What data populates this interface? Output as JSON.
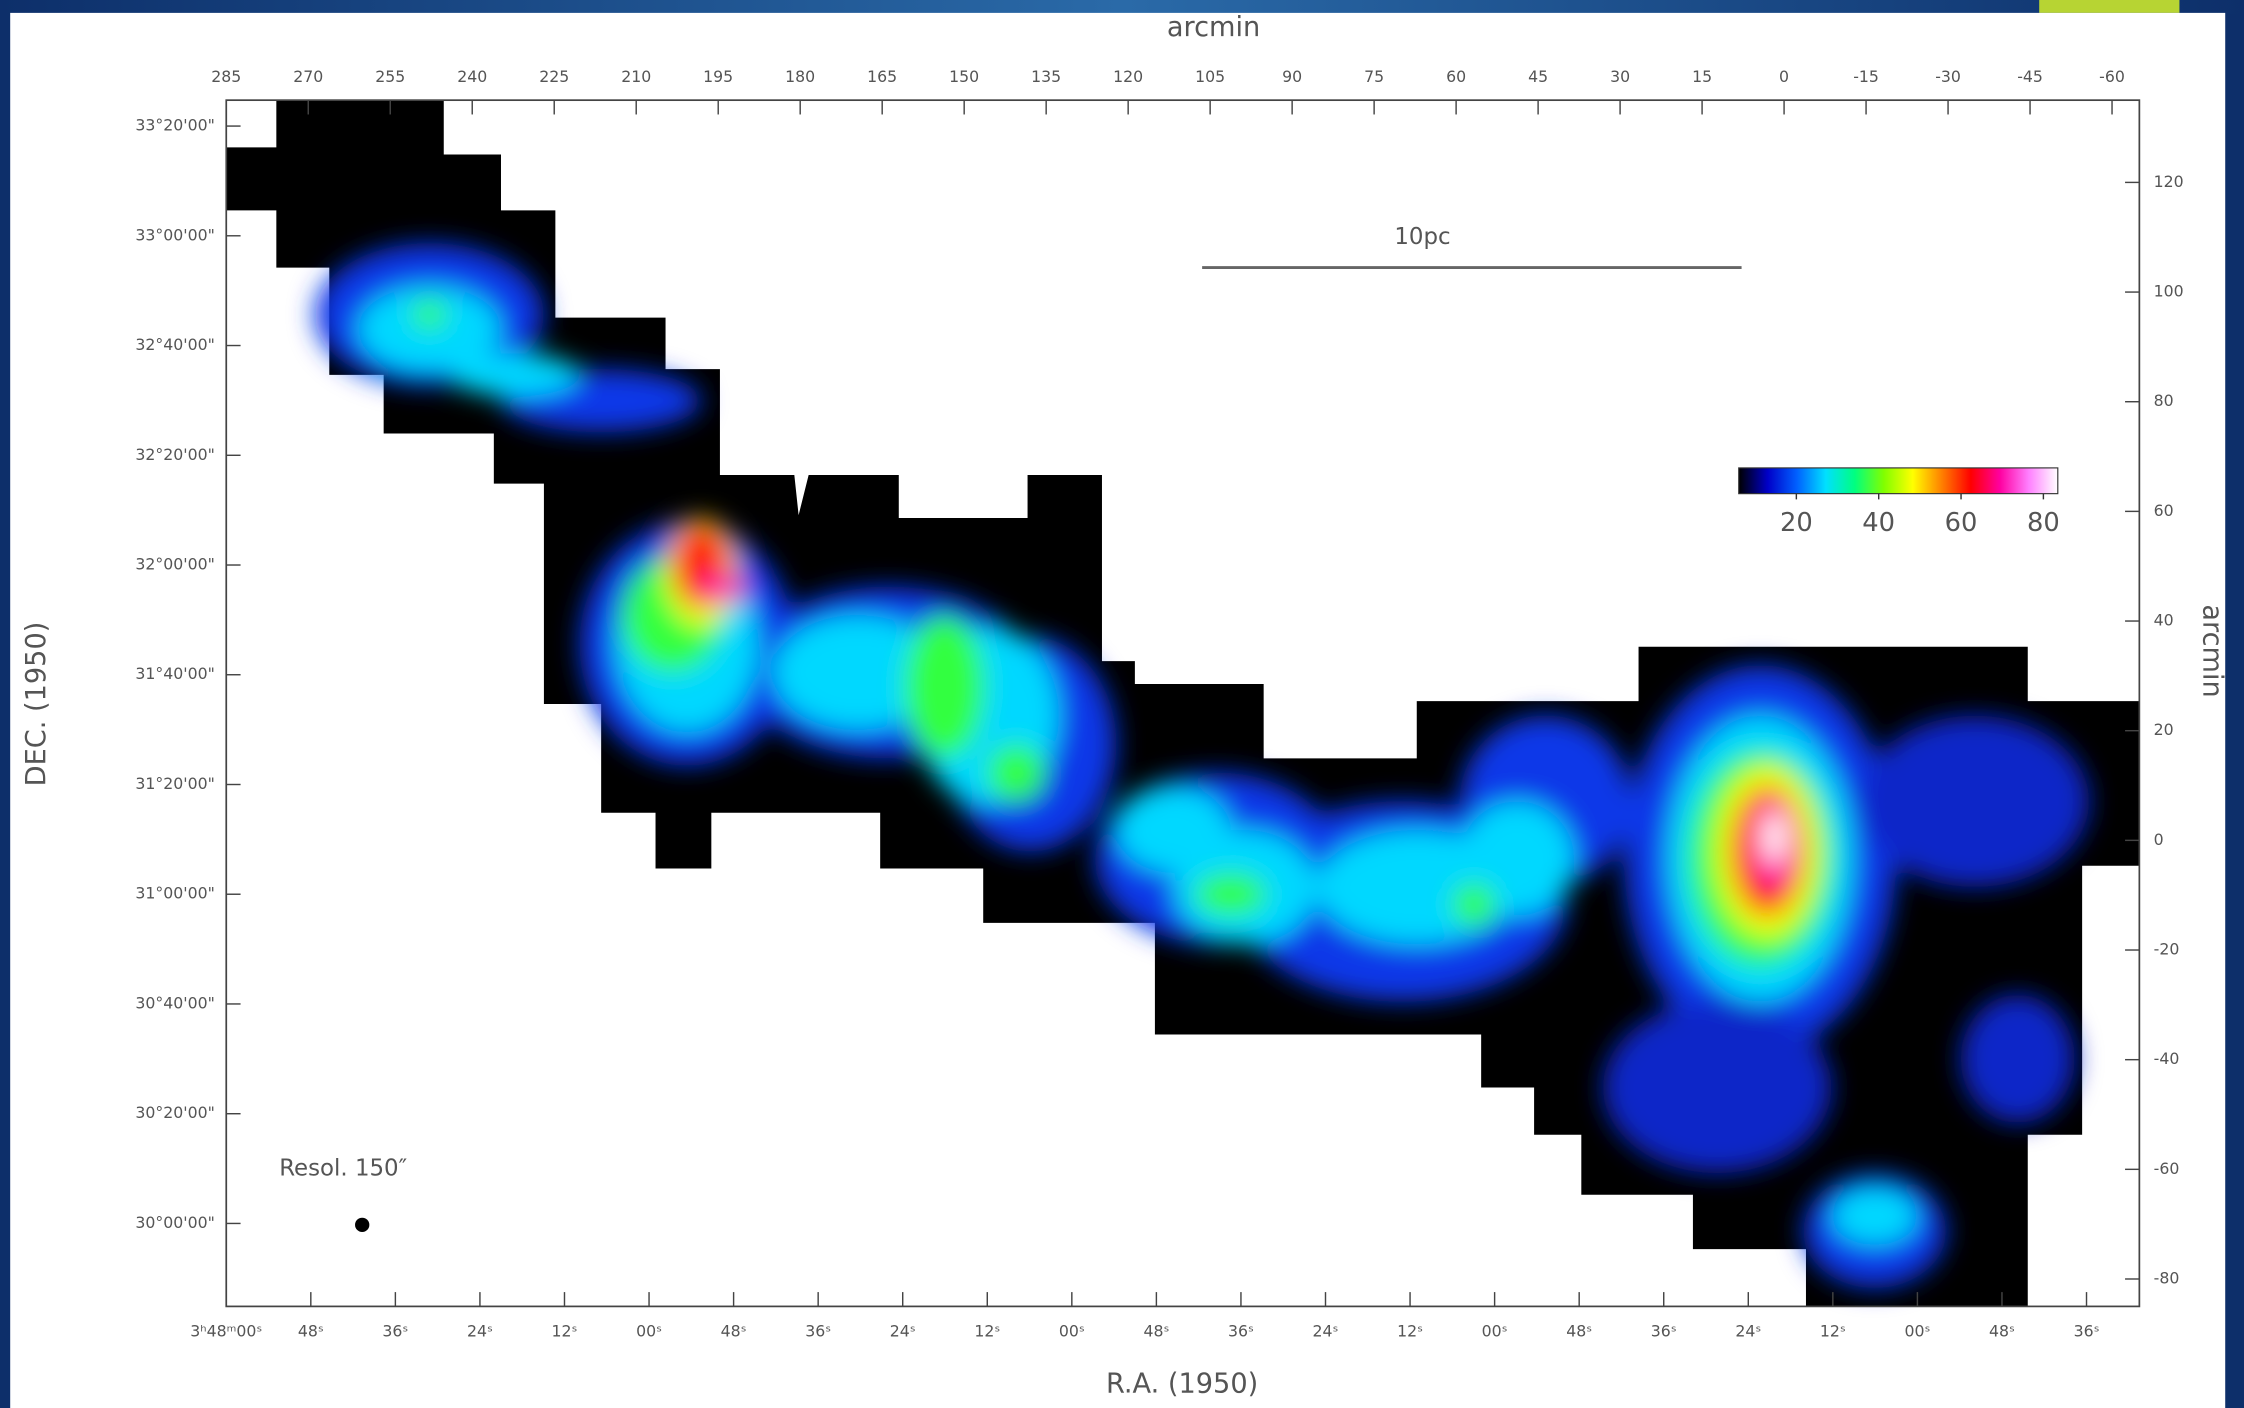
{
  "chart_data": {
    "type": "image",
    "x_label": "R.A. (1950)",
    "x2_label": "arcmin",
    "y_label": "DEC. (1950)",
    "y2_label": "arcmin",
    "xlim": [
      13680,
      13408.5
    ],
    "xticks": [
      {
        "value": 13680,
        "label": "3ʰ48ᵐ00ˢ"
      },
      {
        "value": 13668,
        "label": "48ˢ"
      },
      {
        "value": 13656,
        "label": "36ˢ"
      },
      {
        "value": 13644,
        "label": "24ˢ"
      },
      {
        "value": 13632,
        "label": "12ˢ"
      },
      {
        "value": 13620,
        "label": "00ˢ"
      },
      {
        "value": 13608,
        "label": "48ˢ"
      },
      {
        "value": 13596,
        "label": "36ˢ"
      },
      {
        "value": 13584,
        "label": "24ˢ"
      },
      {
        "value": 13572,
        "label": "12ˢ"
      },
      {
        "value": 13560,
        "label": "00ˢ"
      },
      {
        "value": 13548,
        "label": "48ˢ"
      },
      {
        "value": 13536,
        "label": "36ˢ"
      },
      {
        "value": 13524,
        "label": "24ˢ"
      },
      {
        "value": 13512,
        "label": "12ˢ"
      },
      {
        "value": 13500,
        "label": "00ˢ"
      },
      {
        "value": 13488,
        "label": "48ˢ"
      },
      {
        "value": 13476,
        "label": "36ˢ"
      },
      {
        "value": 13464,
        "label": "24ˢ"
      },
      {
        "value": 13452,
        "label": "12ˢ"
      },
      {
        "value": 13440,
        "label": "00ˢ"
      },
      {
        "value": 13428,
        "label": "48ˢ"
      },
      {
        "value": 13416,
        "label": "36ˢ"
      }
    ],
    "x2lim": [
      285,
      -65
    ],
    "x2ticks": [
      285,
      270,
      255,
      240,
      225,
      210,
      195,
      180,
      165,
      150,
      135,
      120,
      105,
      90,
      75,
      60,
      45,
      30,
      15,
      0,
      -15,
      -30,
      -45,
      -60
    ],
    "ylim": [
      29.748,
      33.412
    ],
    "yticks": [
      {
        "value": 33.3333,
        "label": "33°20'00\""
      },
      {
        "value": 33.0,
        "label": "33°00'00\""
      },
      {
        "value": 32.6667,
        "label": "32°40'00\""
      },
      {
        "value": 32.3333,
        "label": "32°20'00\""
      },
      {
        "value": 32.0,
        "label": "32°00'00\""
      },
      {
        "value": 31.6667,
        "label": "31°40'00\""
      },
      {
        "value": 31.3333,
        "label": "31°20'00\""
      },
      {
        "value": 31.0,
        "label": "31°00'00\""
      },
      {
        "value": 30.6667,
        "label": "30°40'00\""
      },
      {
        "value": 30.3333,
        "label": "30°20'00\""
      },
      {
        "value": 30.0,
        "label": "30°00'00\""
      }
    ],
    "y2lim": [
      -85,
      135
    ],
    "y2ticks": [
      120,
      100,
      80,
      60,
      40,
      20,
      0,
      -20,
      -40,
      -60,
      -80
    ],
    "colorbar": {
      "lim": [
        6,
        83.5
      ],
      "ticks": [
        20,
        40,
        60,
        80
      ],
      "colors": [
        "#000000",
        "#0000c8",
        "#0060ff",
        "#00e0ff",
        "#00ff80",
        "#80ff00",
        "#ffff00",
        "#ff8000",
        "#ff0000",
        "#ff00a0",
        "#ff80ff",
        "#ffffff"
      ]
    },
    "scale_bar_label": "10pc",
    "resolution_label": "Resol. 150″"
  }
}
